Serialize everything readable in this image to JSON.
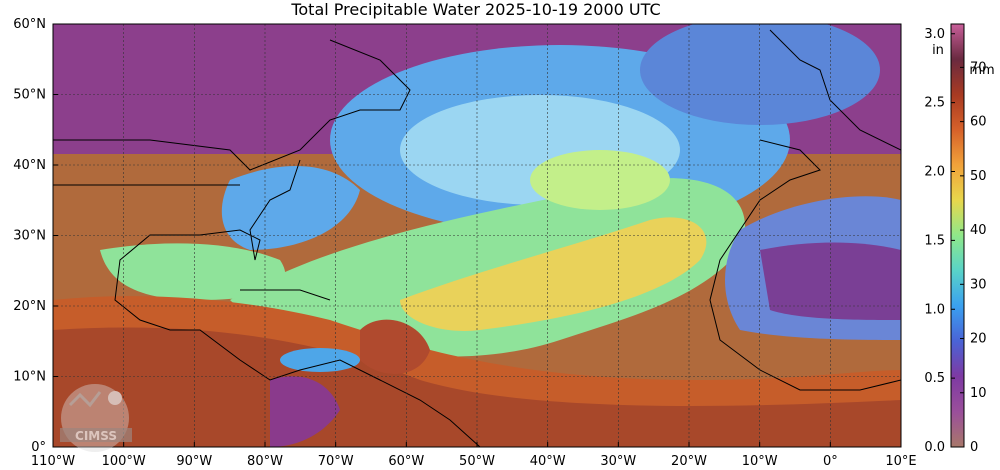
{
  "title": "Total Precipitable Water  2025-10-19 2000 UTC",
  "map": {
    "lat_ticks": [
      "60°N",
      "50°N",
      "40°N",
      "30°N",
      "20°N",
      "10°N",
      "0°"
    ],
    "lon_ticks": [
      "110°W",
      "100°W",
      "90°W",
      "80°W",
      "70°W",
      "60°W",
      "50°W",
      "40°W",
      "30°W",
      "20°W",
      "10°W",
      "0°",
      "10°E"
    ],
    "extent": {
      "lon_min": -110,
      "lon_max": 10,
      "lat_min": 0,
      "lat_max": 60
    },
    "gridlines": true,
    "ocean_field_colors": {
      "dry": "#8e3d8f",
      "low": "#5aa9ea",
      "mid": "#8fe29a",
      "moist": "#f3c04c",
      "wet": "#c8582a",
      "very_wet": "#6e2a63"
    }
  },
  "colorbar": {
    "mm_ticks": [
      "0",
      "10",
      "20",
      "30",
      "40",
      "50",
      "60",
      "70"
    ],
    "in_ticks": [
      "0.0",
      "0.5",
      "1.0",
      "1.5",
      "2.0",
      "2.5",
      "3.0"
    ],
    "in_unit": "in",
    "mm_unit": "mm",
    "colors": [
      "#a8786a",
      "#9a4f9b",
      "#7e3aa3",
      "#4a63d6",
      "#3aa0f0",
      "#59d3c8",
      "#8fe88a",
      "#e8d74c",
      "#f1a23a",
      "#d6612a",
      "#a83a22",
      "#6a2a40",
      "#c85f9a"
    ]
  },
  "logo": {
    "text": "CIMSS"
  }
}
